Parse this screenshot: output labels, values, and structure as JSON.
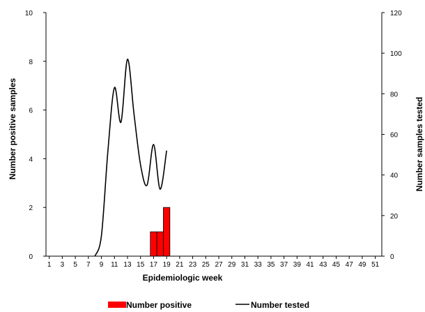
{
  "chart_data": {
    "type": "bar+line",
    "xlabel": "Epidemiologic week",
    "ylabel_left": "Number positive samples",
    "ylabel_right": "Number samples tested",
    "x_ticks": [
      1,
      3,
      5,
      7,
      9,
      11,
      13,
      15,
      17,
      19,
      21,
      23,
      25,
      27,
      29,
      31,
      33,
      35,
      37,
      39,
      41,
      43,
      45,
      47,
      49,
      51
    ],
    "xlim": [
      0.5,
      52
    ],
    "ylim_left": [
      0,
      10
    ],
    "yticks_left": [
      0,
      2,
      4,
      6,
      8,
      10
    ],
    "ylim_right": [
      0,
      120
    ],
    "yticks_right": [
      0,
      20,
      40,
      60,
      80,
      100,
      120
    ],
    "grid": false,
    "legend_position": "bottom-center",
    "series": [
      {
        "name": "Number positive",
        "type": "bar",
        "axis": "left",
        "color": "#ff0000",
        "x": [
          17,
          18,
          19
        ],
        "values": [
          1,
          1,
          2
        ]
      },
      {
        "name": "Number tested",
        "type": "line",
        "axis": "right",
        "color": "#000000",
        "x": [
          8,
          9,
          10,
          11,
          12,
          13,
          14,
          15,
          16,
          17,
          18,
          19
        ],
        "values": [
          0,
          10,
          52,
          83,
          66,
          97,
          70,
          45,
          35,
          55,
          33,
          52
        ]
      }
    ]
  }
}
